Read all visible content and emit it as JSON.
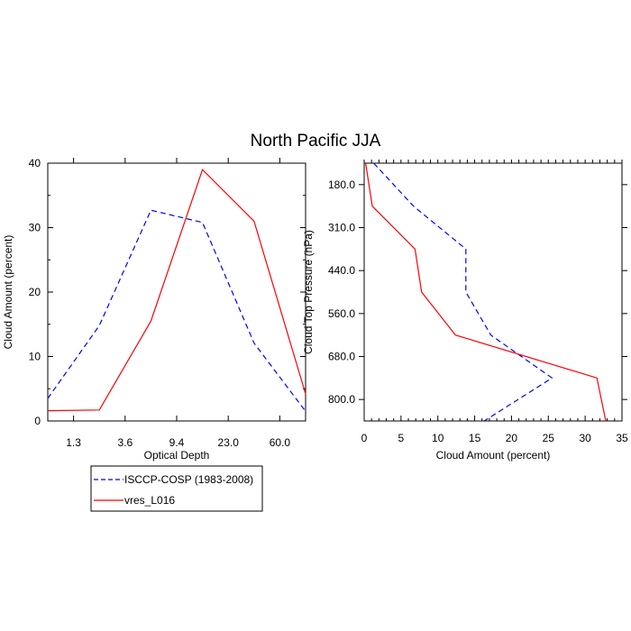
{
  "title": "North Pacific JJA",
  "colors": {
    "obs": "#0000ff",
    "model": "#ff0000",
    "axis": "#000000"
  },
  "chart_data": [
    {
      "type": "line",
      "xlabel": "Optical Depth",
      "ylabel": "Cloud Amount (percent)",
      "ylim": [
        0,
        40
      ],
      "yticks": [
        "0",
        "10",
        "20",
        "30",
        "40"
      ],
      "xtick_labels": [
        "1.3",
        "3.6",
        "9.4",
        "23.0",
        "60.0"
      ],
      "series": [
        {
          "name": "ISCCP-COSP (1983-2008)",
          "style": "dashed",
          "x": [
            0,
            1,
            2,
            3,
            4,
            5
          ],
          "values": [
            3.5,
            14.8,
            32.7,
            30.8,
            12.1,
            1.5
          ]
        },
        {
          "name": "vres_L016",
          "style": "solid",
          "x": [
            0,
            1,
            2,
            3,
            4,
            5
          ],
          "values": [
            1.6,
            1.7,
            15.5,
            39.0,
            31.0,
            4.2
          ]
        }
      ]
    },
    {
      "type": "line",
      "xlabel": "Cloud Amount (percent)",
      "ylabel": "Cloud Top Pressure (hPa)",
      "xlim": [
        0,
        35
      ],
      "xticks": [
        "0",
        "5",
        "10",
        "15",
        "20",
        "25",
        "30",
        "35"
      ],
      "ytick_labels": [
        "180.0",
        "310.0",
        "440.0",
        "560.0",
        "680.0",
        "800.0"
      ],
      "series": [
        {
          "name": "ISCCP-COSP (1983-2008)",
          "style": "dashed",
          "values": [
            1.3,
            6.7,
            13.8,
            13.8,
            17.2,
            25.5,
            16.3
          ],
          "levels": [
            0,
            1,
            2,
            3,
            4,
            5,
            6
          ]
        },
        {
          "name": "vres_L016",
          "style": "solid",
          "values": [
            0.2,
            1.1,
            6.9,
            7.8,
            12.4,
            31.6,
            32.8
          ],
          "levels": [
            0,
            1,
            2,
            3,
            4,
            5,
            6
          ]
        }
      ]
    }
  ],
  "legend": [
    {
      "label": "ISCCP-COSP (1983-2008)",
      "style": "dashed"
    },
    {
      "label": "vres_L016",
      "style": "solid"
    }
  ]
}
